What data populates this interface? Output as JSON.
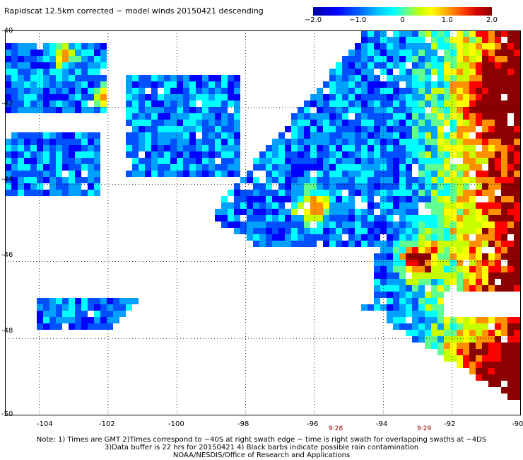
{
  "title": "Rapidscat 12.5km corrected − model winds 20150421 descending",
  "colorbar": {
    "ticks": [
      "−2.0",
      "−1.0",
      "0",
      "1.0",
      "2.0"
    ],
    "min": -2.0,
    "max": 2.0
  },
  "map": {
    "lon_range": [
      -105,
      -90
    ],
    "lat_range": [
      -50,
      -40
    ],
    "lon_labels": [
      "-104",
      "-102",
      "-100",
      "-98",
      "-96",
      "-94",
      "-92",
      "-90"
    ],
    "lat_labels": [
      "-40",
      "-42",
      "-44",
      "-46",
      "-48",
      "-50"
    ],
    "grid": "dotted",
    "time_marks": [
      {
        "label": "9:28",
        "lon": -95.8
      },
      {
        "label": "9:29",
        "lon": -93.5
      }
    ]
  },
  "notes": {
    "line1": "Note: 1) Times are GMT  2)Times correspond to −40S at right swath edge − time is right swath for overlapping swaths at −4DS",
    "line2": "3)Data buffer is 22 hrs for 20150421  4) Black barbs indicate possible rain contamination",
    "line3": "NOAA/NESDIS/Office of Research and Applications"
  },
  "colors": {
    "deep_blue": "#0000a0",
    "blue": "#0000ff",
    "cyan": "#00ffff",
    "yellow": "#ffff00",
    "red": "#ff0000",
    "dark_red": "#8b0000"
  }
}
